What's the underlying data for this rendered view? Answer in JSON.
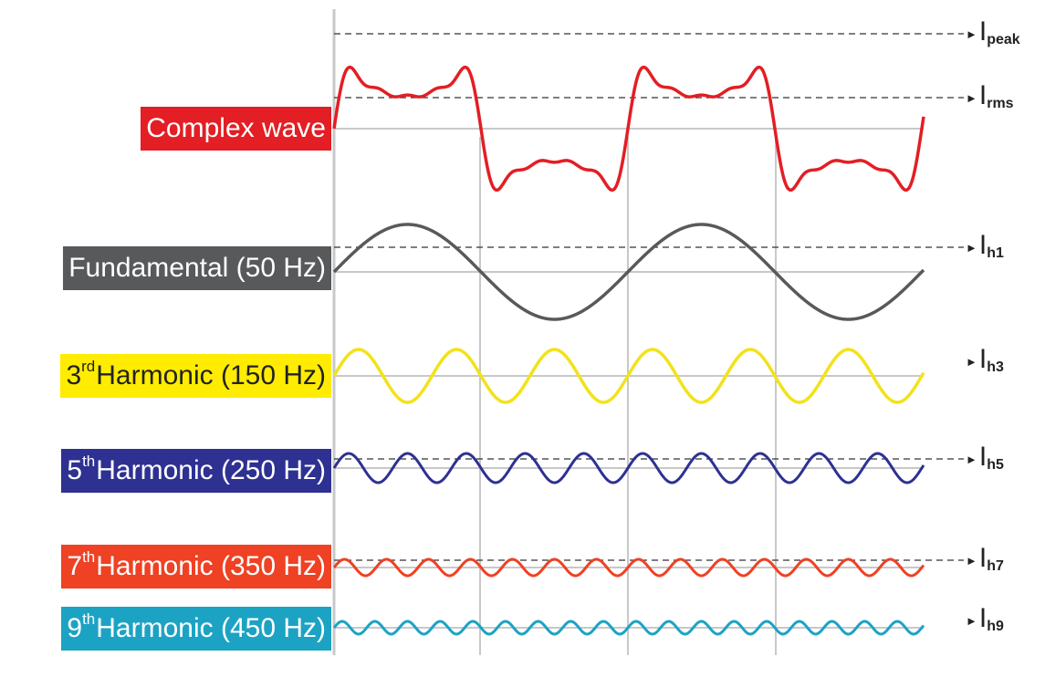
{
  "labels": {
    "complex": {
      "text": "Complex wave",
      "bg": "#e31e24",
      "fg": "#ffffff"
    },
    "fundamental": {
      "text": "Fundamental (50 Hz)",
      "bg": "#58595b",
      "fg": "#ffffff"
    },
    "h3": {
      "num": "3",
      "sup": "rd",
      "text": " Harmonic (150 Hz)",
      "bg": "#ffec00",
      "fg": "#222222"
    },
    "h5": {
      "num": "5",
      "sup": "th",
      "text": " Harmonic (250 Hz)",
      "bg": "#2e3192",
      "fg": "#ffffff"
    },
    "h7": {
      "num": "7",
      "sup": "th",
      "text": " Harmonic (350 Hz)",
      "bg": "#ef4123",
      "fg": "#ffffff"
    },
    "h9": {
      "num": "9",
      "sup": "th",
      "text": " Harmonic (450 Hz)",
      "bg": "#1ca3c4",
      "fg": "#ffffff"
    }
  },
  "current_labels": {
    "peak": {
      "main": "I",
      "sub": "peak"
    },
    "rms": {
      "main": "I",
      "sub": "rms"
    },
    "h1": {
      "main": "I",
      "sub": "h1"
    },
    "h3": {
      "main": "I",
      "sub": "h3"
    },
    "h5": {
      "main": "I",
      "sub": "h5"
    },
    "h7": {
      "main": "I",
      "sub": "h7"
    },
    "h9": {
      "main": "I",
      "sub": "h9"
    }
  },
  "waves": {
    "complex": {
      "color": "#e31e24"
    },
    "fundamental": {
      "color": "#58595b",
      "frequency_hz": 50
    },
    "h3": {
      "color": "#f2e21a",
      "frequency_hz": 150
    },
    "h5": {
      "color": "#2e3192",
      "frequency_hz": 250
    },
    "h7": {
      "color": "#ef4123",
      "frequency_hz": 350
    },
    "h9": {
      "color": "#1ca3c4",
      "frequency_hz": 450
    }
  }
}
